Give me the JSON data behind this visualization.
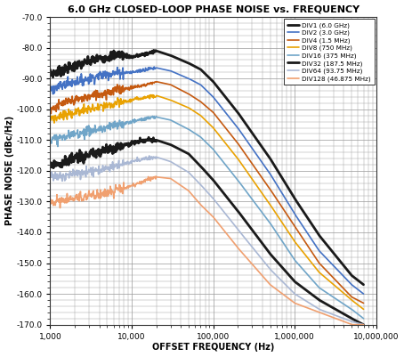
{
  "title": "6.0 GHz CLOSED-LOOP PHASE NOISE vs. FREQUENCY",
  "xlabel": "OFFSET FREQUENCY (Hz)",
  "ylabel": "PHASE NOISE (dBc/Hz)",
  "ylim": [
    -170.0,
    -70.0
  ],
  "yticks": [
    -170,
    -160,
    -150,
    -140,
    -130,
    -120,
    -110,
    -100,
    -90,
    -80,
    -70
  ],
  "background_color": "#ffffff",
  "grid_color": "#999999",
  "series": [
    {
      "label": "DIV1 (6.0 GHz)",
      "color": "#1a1a1a",
      "linewidth": 2.0,
      "x": [
        1000,
        1500,
        2000,
        3000,
        4000,
        5000,
        7000,
        10000,
        15000,
        20000,
        30000,
        50000,
        70000,
        100000,
        200000,
        500000,
        1000000,
        2000000,
        5000000,
        7000000
      ],
      "y": [
        -88.5,
        -87,
        -86,
        -84.5,
        -83.5,
        -83,
        -82,
        -83,
        -82,
        -81,
        -82.5,
        -85,
        -87,
        -91,
        -101,
        -116,
        -129,
        -141,
        -154,
        -157
      ]
    },
    {
      "label": "DIV2 (3.0 GHz)",
      "color": "#4472c4",
      "linewidth": 1.2,
      "x": [
        1000,
        1500,
        2000,
        3000,
        4000,
        5000,
        7000,
        10000,
        15000,
        20000,
        30000,
        50000,
        70000,
        100000,
        200000,
        500000,
        1000000,
        2000000,
        5000000,
        7000000
      ],
      "y": [
        -93.5,
        -92,
        -91,
        -90,
        -89,
        -88.5,
        -88,
        -88,
        -87,
        -86.5,
        -87.5,
        -90,
        -92,
        -96,
        -106,
        -121,
        -134,
        -146,
        -157,
        -160
      ]
    },
    {
      "label": "DIV4 (1.5 MHz)",
      "color": "#c55a11",
      "linewidth": 1.2,
      "x": [
        1000,
        1500,
        2000,
        3000,
        4000,
        5000,
        7000,
        10000,
        15000,
        20000,
        30000,
        50000,
        70000,
        100000,
        200000,
        500000,
        1000000,
        2000000,
        5000000,
        7000000
      ],
      "y": [
        -100,
        -98,
        -97,
        -96,
        -95,
        -94.5,
        -93.5,
        -93,
        -92,
        -91,
        -92,
        -95,
        -97.5,
        -101,
        -111,
        -126,
        -138,
        -150,
        -161,
        -163
      ]
    },
    {
      "label": "DIV8 (750 MHz)",
      "color": "#e9a202",
      "linewidth": 1.2,
      "x": [
        1000,
        1500,
        2000,
        3000,
        4000,
        5000,
        7000,
        10000,
        15000,
        20000,
        30000,
        50000,
        70000,
        100000,
        200000,
        500000,
        1000000,
        2000000,
        5000000,
        7000000
      ],
      "y": [
        -103,
        -102,
        -101,
        -100,
        -99.5,
        -99,
        -98,
        -97,
        -96,
        -95.5,
        -97,
        -99.5,
        -102,
        -106,
        -116,
        -131,
        -143,
        -153,
        -162,
        -165
      ]
    },
    {
      "label": "DIV16 (375 MHz)",
      "color": "#70a5c8",
      "linewidth": 1.2,
      "x": [
        1000,
        1500,
        2000,
        3000,
        4000,
        5000,
        7000,
        10000,
        15000,
        20000,
        30000,
        50000,
        70000,
        100000,
        200000,
        500000,
        1000000,
        2000000,
        5000000,
        7000000
      ],
      "y": [
        -110,
        -109,
        -108,
        -107,
        -106.5,
        -106,
        -105,
        -104,
        -103,
        -102.5,
        -103.5,
        -106.5,
        -109,
        -113,
        -123,
        -137,
        -149,
        -158,
        -165,
        -168
      ]
    },
    {
      "label": "DIV32 (187.5 MHz)",
      "color": "#1a1a1a",
      "linewidth": 2.0,
      "x": [
        1000,
        1500,
        2000,
        3000,
        4000,
        5000,
        7000,
        10000,
        15000,
        20000,
        30000,
        50000,
        70000,
        100000,
        200000,
        500000,
        1000000,
        2000000,
        5000000,
        7000000
      ],
      "y": [
        -118,
        -117,
        -116,
        -115,
        -114,
        -113,
        -112,
        -111,
        -110,
        -110,
        -111.5,
        -114.5,
        -118.5,
        -123,
        -133,
        -147,
        -156,
        -162,
        -168,
        -170
      ]
    },
    {
      "label": "DIV64 (93.75 MHz)",
      "color": "#aab8d4",
      "linewidth": 1.2,
      "x": [
        1000,
        1500,
        2000,
        3000,
        4000,
        5000,
        7000,
        10000,
        15000,
        20000,
        30000,
        50000,
        70000,
        100000,
        200000,
        500000,
        1000000,
        2000000,
        5000000,
        7000000
      ],
      "y": [
        -122,
        -121.5,
        -121,
        -120,
        -119.5,
        -119,
        -118,
        -117,
        -116,
        -115.5,
        -117,
        -120.5,
        -124.5,
        -129,
        -139,
        -152,
        -160,
        -165,
        -169,
        -170
      ]
    },
    {
      "label": "DIV128 (46.875 MHz)",
      "color": "#f0a070",
      "linewidth": 1.2,
      "x": [
        1000,
        1500,
        2000,
        3000,
        4000,
        5000,
        7000,
        10000,
        15000,
        20000,
        30000,
        50000,
        70000,
        100000,
        200000,
        500000,
        1000000,
        2000000,
        5000000,
        7000000
      ],
      "y": [
        -130,
        -129.5,
        -129,
        -128,
        -127.5,
        -127,
        -126,
        -125,
        -123,
        -122,
        -122.5,
        -126.5,
        -131,
        -135,
        -145,
        -157,
        -163,
        -166,
        -170,
        -170
      ]
    }
  ]
}
